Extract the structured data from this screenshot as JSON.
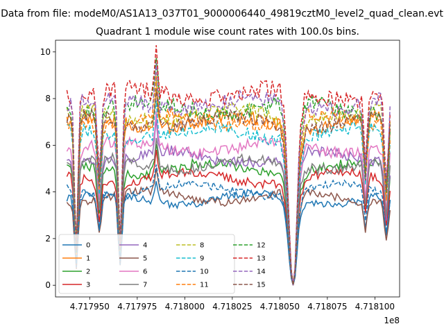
{
  "suptitle": "Data from file: modeM0/AS1A13_037T01_9000006440_49819cztM0_level2_quad_clean.evt",
  "chart_data": {
    "type": "line",
    "title": "Quadrant 1 module wise count rates with 100.0s bins.",
    "xlabel": "",
    "ylabel": "",
    "x_offset_label": "1e8",
    "xlim": [
      4.717932,
      4.718113
    ],
    "ylim": [
      -0.5,
      10.5
    ],
    "x_ticks": [
      4.71795,
      4.717975,
      4.718,
      4.718025,
      4.71805,
      4.718075,
      4.7181
    ],
    "x_tick_labels": [
      "4.717950",
      "4.717975",
      "4.718000",
      "4.718025",
      "4.718050",
      "4.718075",
      "4.718100"
    ],
    "y_ticks": [
      0,
      2,
      4,
      6,
      8,
      10
    ],
    "y_tick_labels": [
      "0",
      "2",
      "4",
      "6",
      "8",
      "10"
    ],
    "grid": false,
    "legend": "lower-left, 4 columns",
    "x_start": 4.717938,
    "x_end": 4.718108,
    "bin": 1e-06,
    "dips": [
      {
        "x": 4.717943,
        "depth": 0.85,
        "width": 1.4e-06
      },
      {
        "x": 4.717955,
        "depth": 0.4,
        "width": 1.4e-06
      },
      {
        "x": 4.717966,
        "depth": 0.78,
        "width": 1.4e-06
      },
      {
        "x": 4.718057,
        "depth": 1.0,
        "width": 3.4e-06
      },
      {
        "x": 4.718095,
        "depth": 0.35,
        "width": 1.2e-06
      },
      {
        "x": 4.718106,
        "depth": 0.45,
        "width": 1.5e-06
      }
    ],
    "spikes": [
      {
        "x": 4.717944,
        "height": 0.12,
        "width": 1e-06
      },
      {
        "x": 4.717985,
        "height": 0.2,
        "width": 1.2e-06
      },
      {
        "x": 4.71806,
        "height": 0.14,
        "width": 1.2e-06
      }
    ],
    "series": [
      {
        "name": "0",
        "color": "#1f77b4",
        "dash": "solid",
        "level": 3.7
      },
      {
        "name": "1",
        "color": "#ff7f0e",
        "dash": "solid",
        "level": 7.0
      },
      {
        "name": "2",
        "color": "#2ca02c",
        "dash": "solid",
        "level": 5.0
      },
      {
        "name": "3",
        "color": "#d62728",
        "dash": "solid",
        "level": 4.6
      },
      {
        "name": "4",
        "color": "#9467bd",
        "dash": "solid",
        "level": 5.5
      },
      {
        "name": "5",
        "color": "#8c564b",
        "dash": "solid",
        "level": 3.8
      },
      {
        "name": "6",
        "color": "#e377c2",
        "dash": "solid",
        "level": 5.9
      },
      {
        "name": "7",
        "color": "#7f7f7f",
        "dash": "solid",
        "level": 5.2
      },
      {
        "name": "8",
        "color": "#bcbd22",
        "dash": "dashed",
        "level": 7.3
      },
      {
        "name": "9",
        "color": "#17becf",
        "dash": "dashed",
        "level": 6.5
      },
      {
        "name": "10",
        "color": "#1f77b4",
        "dash": "dashed",
        "level": 4.1
      },
      {
        "name": "11",
        "color": "#ff7f0e",
        "dash": "dashed",
        "level": 7.1
      },
      {
        "name": "12",
        "color": "#2ca02c",
        "dash": "dashed",
        "level": 7.6
      },
      {
        "name": "13",
        "color": "#d62728",
        "dash": "dashed",
        "level": 8.2
      },
      {
        "name": "14",
        "color": "#9467bd",
        "dash": "dashed",
        "level": 7.8
      },
      {
        "name": "15",
        "color": "#8c564b",
        "dash": "dashed",
        "level": 7.0
      }
    ]
  }
}
